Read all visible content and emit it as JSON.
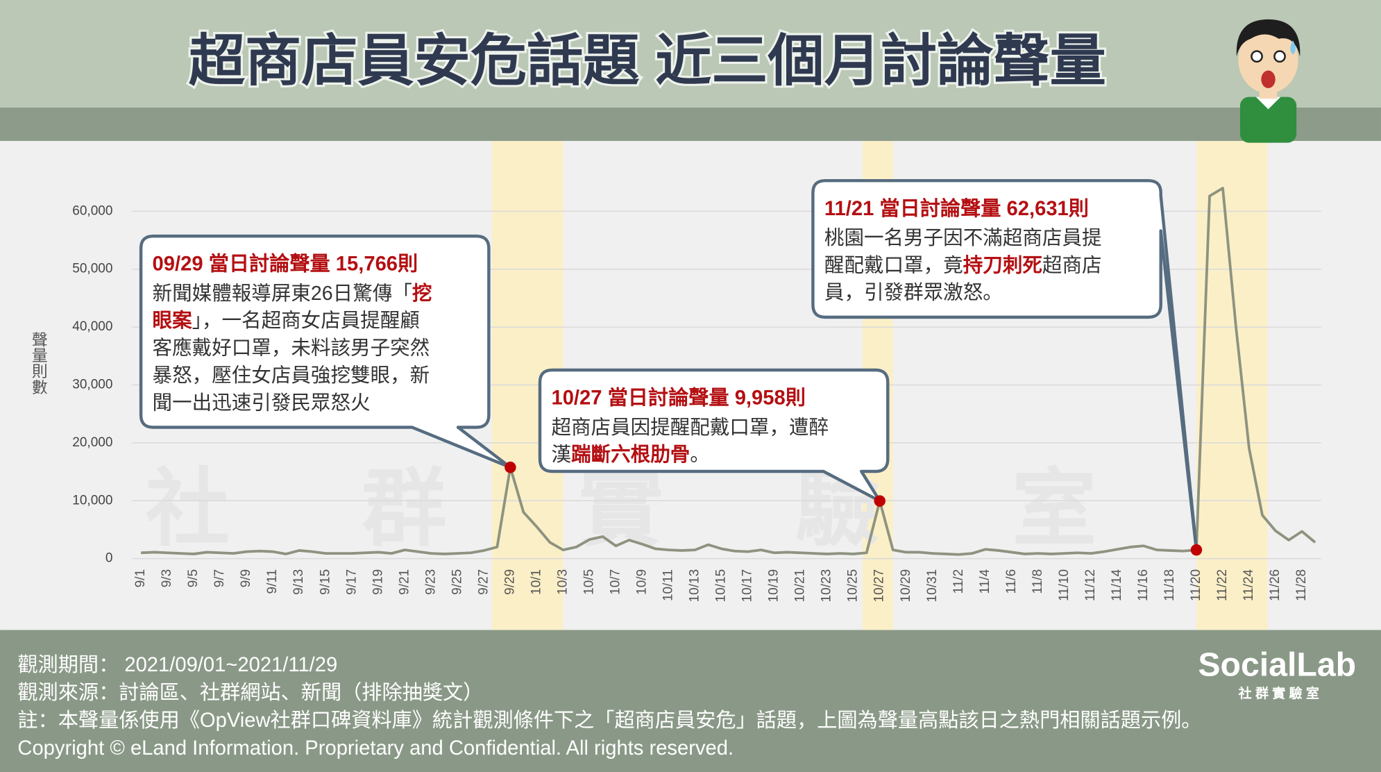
{
  "chart_data": {
    "type": "line",
    "title": "超商店員安危話題 近三個月討論聲量",
    "y_label": "聲量則數",
    "watermark": "社群實驗室",
    "color": "#8d937f",
    "grid": true,
    "ylim": [
      0,
      65000
    ],
    "yticks": [
      0,
      {
        "value": 10000,
        "label": "10,000"
      },
      {
        "value": 20000,
        "label": "20,000"
      },
      {
        "value": 30000,
        "label": "30,000"
      },
      {
        "value": 40000,
        "label": "40,000"
      },
      {
        "value": 50000,
        "label": "50,000"
      },
      {
        "value": 60000,
        "label": "60,000"
      }
    ],
    "categories": [
      "9/1",
      null,
      "9/3",
      null,
      "9/5",
      null,
      "9/7",
      null,
      "9/9",
      null,
      "9/11",
      null,
      "9/13",
      null,
      "9/15",
      null,
      "9/17",
      null,
      "9/19",
      null,
      "9/21",
      null,
      "9/23",
      null,
      "9/25",
      null,
      "9/27",
      null,
      "9/29",
      null,
      "10/1",
      null,
      "10/3",
      null,
      "10/5",
      null,
      "10/7",
      null,
      "10/9",
      null,
      "10/11",
      null,
      "10/13",
      null,
      "10/15",
      null,
      "10/17",
      null,
      "10/19",
      null,
      "10/21",
      null,
      "10/23",
      null,
      "10/25",
      null,
      "10/27",
      null,
      "10/29",
      null,
      "10/31",
      null,
      "11/2",
      null,
      "11/4",
      null,
      "11/6",
      null,
      "11/8",
      null,
      "11/10",
      null,
      "11/12",
      null,
      "11/14",
      null,
      "11/16",
      null,
      "11/18",
      null,
      "11/20",
      null,
      "11/22",
      null,
      "11/24",
      null,
      "11/26",
      null,
      "11/28",
      null
    ],
    "values": [
      1000,
      1100,
      1000,
      900,
      800,
      1100,
      1000,
      900,
      1200,
      1300,
      1200,
      800,
      1400,
      1200,
      900,
      900,
      900,
      1000,
      1100,
      900,
      1500,
      1200,
      900,
      800,
      900,
      1000,
      1400,
      2000,
      15766,
      8000,
      5500,
      2800,
      1500,
      2000,
      3300,
      3800,
      2200,
      3200,
      2500,
      1700,
      1500,
      1400,
      1500,
      2400,
      1700,
      1300,
      1200,
      1500,
      1000,
      1100,
      1000,
      900,
      800,
      900,
      800,
      1000,
      9958,
      1500,
      1100,
      1100,
      900,
      800,
      700,
      900,
      1600,
      1400,
      1100,
      800,
      900,
      800,
      900,
      1000,
      900,
      1200,
      1600,
      2000,
      2200,
      1500,
      1400,
      1300,
      1500,
      62631,
      64000,
      40000,
      19000,
      7500,
      4800,
      3200,
      4700,
      2800
    ],
    "annotations": [
      {
        "heading": "09/29 當日討論聲量 15,766則",
        "lines": [
          [
            {
              "text": "新聞媒體報導屏東26日驚傳「"
            },
            {
              "text": "挖",
              "emphasis": true
            }
          ],
          [
            {
              "text": "眼案",
              "emphasis": true
            },
            {
              "text": "」，一名超商女店員提醒顧"
            }
          ],
          [
            {
              "text": "客應戴好口罩，未料該男子突然"
            }
          ],
          [
            {
              "text": "暴怒，壓住女店員強挖雙眼，新"
            }
          ],
          [
            {
              "text": "聞一出迅速引發民眾怒火"
            }
          ]
        ]
      },
      {
        "heading": "10/27 當日討論聲量 9,958則",
        "lines": [
          [
            {
              "text": "超商店員因提醒配戴口罩，遭醉"
            }
          ],
          [
            {
              "text": "漢"
            },
            {
              "text": "踹斷六根肋骨",
              "emphasis": true
            },
            {
              "text": "。"
            }
          ]
        ]
      },
      {
        "heading": "11/21 當日討論聲量 62,631則",
        "lines": [
          [
            {
              "text": "桃園一名男子因不滿超商店員提"
            }
          ],
          [
            {
              "text": "醒配戴口罩，竟"
            },
            {
              "text": "持刀刺死",
              "emphasis": true
            },
            {
              "text": "超商店"
            }
          ],
          [
            {
              "text": "員，引發群眾激怒。"
            }
          ]
        ]
      }
    ]
  },
  "footer": {
    "lines": [
      "觀測期間： 2021/09/01~2021/11/29",
      "觀測來源：討論區、社群網站、新聞（排除抽獎文）",
      "註：本聲量係使用《OpView社群口碑資料庫》統計觀測條件下之「超商店員安危」話題，上圖為聲量高點該日之熱門相關話題示例。",
      "Copyright © eLand Information. Proprietary and Confidential. All rights reserved."
    ],
    "logo": "SocialLab",
    "logo_subtitle": "社 群 實 驗 室"
  }
}
